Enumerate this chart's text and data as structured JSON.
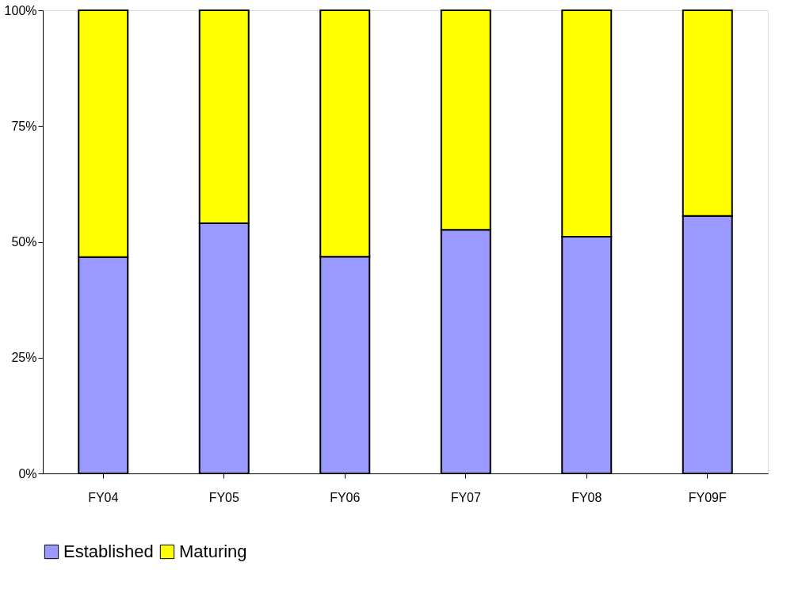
{
  "chart_data": {
    "type": "bar",
    "stacked": true,
    "categories": [
      "FY04",
      "FY05",
      "FY06",
      "FY07",
      "FY08",
      "FY09F"
    ],
    "series": [
      {
        "name": "Established",
        "color": "#9999ff",
        "values": [
          46.7,
          54.0,
          46.8,
          52.6,
          51.1,
          55.6
        ]
      },
      {
        "name": "Maturing",
        "color": "#ffff00",
        "values": [
          53.3,
          46.0,
          53.2,
          47.4,
          48.9,
          44.4
        ]
      }
    ],
    "ylim": [
      0,
      100
    ],
    "yticks": [
      {
        "value": 0,
        "label": "0%"
      },
      {
        "value": 25,
        "label": "25%"
      },
      {
        "value": 50,
        "label": "50%"
      },
      {
        "value": 75,
        "label": "75%"
      },
      {
        "value": 100,
        "label": "100%"
      }
    ],
    "grid": false,
    "legend": "bottom"
  }
}
